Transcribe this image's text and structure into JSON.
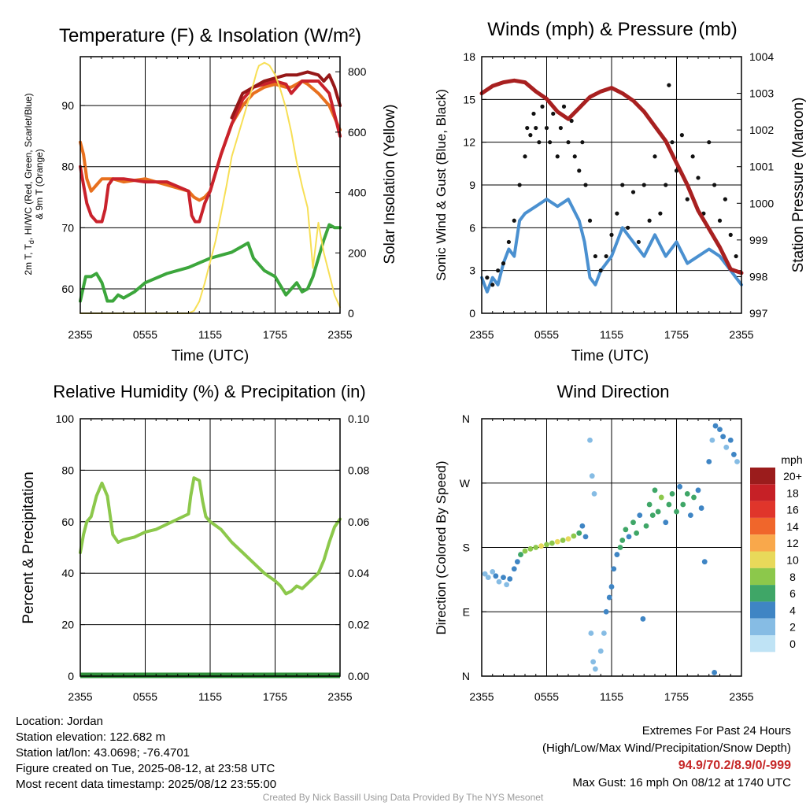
{
  "chart_data": [
    {
      "type": "line",
      "title": "Temperature (F) & Insolation (W/m²)",
      "xlabel": "Time (UTC)",
      "ylabel": "2m T, Td, HI/WC (Red, Green, Scarlet/Blue) & 9m T (Orange)",
      "ylabel_line1": "2m T, T",
      "ylabel_sub": "d",
      "ylabel_line1_rest": ", HI/WC (Red, Green, Scarlet/Blue)",
      "ylabel_line2": "& 9m T (Orange)",
      "y2label": "Solar Insolation (Yellow)",
      "x_ticks": [
        "2355",
        "0555",
        "1155",
        "1755",
        "2355"
      ],
      "ylim": [
        56,
        98
      ],
      "y_ticks": [
        "60",
        "70",
        "80",
        "90"
      ],
      "y2lim": [
        0,
        850
      ],
      "y2_ticks": [
        "0",
        "200",
        "400",
        "600",
        "800"
      ],
      "series": [
        {
          "color": "#e8701e",
          "axis": "left",
          "x": [
            0,
            0.3,
            0.6,
            1,
            1.5,
            2,
            2.5,
            3,
            4,
            6,
            8,
            10,
            10.5,
            11,
            11.5,
            12,
            13,
            14,
            15,
            16,
            17,
            18,
            19,
            19.5,
            20,
            20.5,
            21,
            22,
            23,
            24
          ],
          "y": [
            84,
            82,
            78,
            76,
            77,
            78,
            78,
            78,
            77.5,
            78,
            77,
            76,
            75,
            74.5,
            75,
            76,
            82,
            87,
            90,
            92,
            93,
            93.5,
            93,
            93,
            93.5,
            94,
            93.5,
            92,
            90,
            86
          ]
        },
        {
          "color": "#c9222c",
          "axis": "left",
          "x": [
            0,
            0.3,
            0.6,
            1,
            1.5,
            2,
            2.3,
            2.6,
            3,
            4,
            6,
            8,
            10,
            10.3,
            10.6,
            11,
            11.5,
            12,
            13,
            14,
            15,
            16,
            17,
            18,
            19,
            19.5,
            20,
            20.5,
            21,
            22,
            23,
            24
          ],
          "y": [
            80,
            77,
            74,
            72,
            71,
            71,
            73,
            77,
            78,
            78,
            77.5,
            77.5,
            76,
            72,
            71,
            71,
            74,
            76,
            82,
            87,
            91,
            93,
            93.5,
            94,
            93.5,
            92,
            93,
            94,
            94,
            94,
            92,
            85
          ]
        },
        {
          "color": "#961818",
          "axis": "left",
          "x": [
            14,
            15,
            16,
            17,
            18,
            19,
            20,
            21,
            22,
            22.5,
            23,
            23.5,
            24
          ],
          "y": [
            88,
            92,
            93,
            94,
            94.5,
            95,
            95,
            95.5,
            95,
            94,
            95,
            93,
            90
          ]
        },
        {
          "color": "#3ca63c",
          "axis": "left",
          "x": [
            0,
            0.5,
            1,
            1.5,
            2,
            2.5,
            3,
            3.5,
            4,
            5,
            6,
            8,
            10,
            12,
            14,
            15,
            15.5,
            16,
            17,
            18,
            19,
            19.5,
            20,
            20.5,
            21,
            21.5,
            22,
            22.5,
            23,
            23.5,
            24
          ],
          "y": [
            58,
            62,
            62,
            62.5,
            61,
            58,
            58,
            59,
            58.5,
            59.5,
            61,
            62.5,
            63.5,
            65,
            66,
            67,
            67.5,
            65,
            63,
            62,
            59,
            60,
            61,
            59.5,
            60,
            62,
            65,
            68,
            70.5,
            70,
            70
          ]
        },
        {
          "color": "#f7df55",
          "axis": "right",
          "x": [
            0,
            1,
            2,
            4,
            6,
            8,
            10,
            10.5,
            11,
            11.5,
            12,
            12.5,
            13,
            13.5,
            14,
            15,
            15.5,
            16,
            16.3,
            16.5,
            17,
            17.3,
            17.5,
            18,
            18.5,
            19,
            19.5,
            20,
            20.5,
            21,
            21.5,
            22,
            22.5,
            23,
            23.5,
            24
          ],
          "y": [
            0,
            0,
            0,
            0,
            0,
            0,
            0,
            8,
            40,
            100,
            170,
            240,
            330,
            420,
            520,
            640,
            700,
            760,
            800,
            820,
            830,
            825,
            820,
            790,
            740,
            680,
            600,
            500,
            420,
            350,
            150,
            300,
            200,
            130,
            60,
            20
          ]
        }
      ]
    },
    {
      "type": "line",
      "title": "Winds (mph) & Pressure (mb)",
      "xlabel": "Time (UTC)",
      "ylabel": "Sonic Wind & Gust (Blue, Black)",
      "y2label": "Station Pressure (Maroon)",
      "x_ticks": [
        "2355",
        "0555",
        "1155",
        "1755",
        "2355"
      ],
      "ylim": [
        0,
        18
      ],
      "y_ticks": [
        "0",
        "3",
        "6",
        "9",
        "12",
        "15",
        "18"
      ],
      "y2lim": [
        997,
        1004
      ],
      "y2_ticks": [
        "997",
        "998",
        "999",
        "1000",
        "1001",
        "1002",
        "1003",
        "1004"
      ],
      "wind": {
        "color": "#4a90d0",
        "x": [
          0,
          0.5,
          1,
          1.5,
          2,
          2.5,
          3,
          3.5,
          4,
          5,
          6,
          7,
          8,
          9,
          9.5,
          10,
          10.5,
          11,
          12,
          13,
          14,
          15,
          16,
          17,
          18,
          19,
          20,
          21,
          22,
          23,
          24
        ],
        "y": [
          2.5,
          1.5,
          2.5,
          2,
          3.5,
          4.5,
          4,
          6.5,
          7,
          7.5,
          8,
          7.5,
          8,
          6.5,
          5,
          2.5,
          2,
          3,
          4,
          6,
          5,
          4,
          5.5,
          4,
          5,
          3.5,
          4,
          4.5,
          4,
          3,
          2
        ]
      },
      "pressure": {
        "color": "#a82020",
        "x": [
          0,
          1,
          2,
          3,
          4,
          5,
          6,
          7,
          8,
          9,
          10,
          11,
          12,
          13,
          14,
          15,
          16,
          17,
          18,
          19,
          20,
          21,
          22,
          23,
          24
        ],
        "y": [
          1003,
          1003.2,
          1003.3,
          1003.35,
          1003.3,
          1003.05,
          1002.85,
          1002.5,
          1002.3,
          1002.6,
          1002.9,
          1003.05,
          1003.15,
          1003,
          1002.8,
          1002.5,
          1002.1,
          1001.7,
          1001.1,
          1000.5,
          999.8,
          999.3,
          998.8,
          998.2,
          998.1
        ]
      },
      "gusts": {
        "color": "#111111",
        "x": [
          0.5,
          1,
          1.5,
          2,
          2.5,
          3,
          3.5,
          4,
          4.2,
          4.5,
          4.8,
          5,
          5.3,
          5.6,
          6,
          6.3,
          6.6,
          7,
          7.3,
          7.6,
          8,
          8.3,
          8.6,
          9,
          9.3,
          9.6,
          10,
          10.5,
          11,
          11.5,
          12,
          12.5,
          13,
          13.5,
          14,
          14.5,
          15,
          15.5,
          16,
          16.5,
          17,
          17.3,
          17.6,
          18,
          18.5,
          19,
          19.5,
          20,
          20.5,
          21,
          21.5,
          22,
          22.5,
          23,
          23.5
        ],
        "y": [
          2.5,
          2,
          3,
          3.5,
          5,
          6.5,
          9,
          11,
          13,
          12.5,
          14,
          13,
          12,
          14.5,
          13,
          12,
          14,
          11,
          13,
          14.5,
          12,
          13.5,
          11,
          10,
          12,
          9,
          6.5,
          4,
          3,
          4,
          5.5,
          7,
          9,
          6,
          8.5,
          5,
          9,
          6.5,
          11,
          7,
          9,
          16,
          12,
          10,
          12.5,
          8,
          11,
          9.5,
          7,
          12,
          9,
          6.5,
          8,
          5.5,
          4
        ]
      }
    },
    {
      "type": "line",
      "title": "Relative Humidity (%) & Precipitation (in)",
      "xlabel": "",
      "ylabel": "Percent & Precipitation",
      "x_ticks": [
        "2355",
        "0555",
        "1155",
        "1755",
        "2355"
      ],
      "ylim": [
        0,
        100
      ],
      "y_ticks": [
        "0",
        "20",
        "40",
        "60",
        "80",
        "100"
      ],
      "y2lim": [
        0,
        0.1
      ],
      "y2_ticks": [
        "0.00",
        "0.02",
        "0.04",
        "0.06",
        "0.08",
        "0.10"
      ],
      "series": [
        {
          "color": "#8cc84b",
          "x": [
            0,
            0.3,
            0.6,
            1,
            1.5,
            2,
            2.5,
            3,
            3.5,
            4,
            5,
            6,
            7,
            8,
            9,
            10,
            10.2,
            10.5,
            11,
            11.3,
            11.6,
            12,
            13,
            14,
            15,
            16,
            17,
            18,
            18.5,
            19,
            19.5,
            20,
            20.5,
            21,
            21.5,
            22,
            22.5,
            23,
            23.5,
            24
          ],
          "y": [
            48,
            55,
            60,
            62,
            70,
            75,
            70,
            55,
            52,
            53,
            54,
            56,
            57,
            59,
            61,
            63,
            70,
            77,
            76,
            68,
            62,
            60,
            57,
            52,
            48,
            44,
            40,
            37,
            35,
            32,
            33,
            35,
            34,
            36,
            38,
            40,
            45,
            52,
            58,
            61
          ]
        },
        {
          "color": "#2f8f3a",
          "x": [
            0,
            24
          ],
          "y": [
            0,
            0
          ]
        }
      ]
    },
    {
      "type": "scatter",
      "title": "Wind Direction",
      "ylabel": "Direction (Colored By Speed)",
      "x_ticks": [
        "2355",
        "0555",
        "1155",
        "1755",
        "2355"
      ],
      "y_ticks": [
        "N",
        "E",
        "S",
        "W",
        "N"
      ],
      "ylim": [
        0,
        360
      ],
      "colorbar": {
        "unit": "mph",
        "labels": [
          "20+",
          "18",
          "16",
          "14",
          "12",
          "10",
          "8",
          "6",
          "4",
          "2",
          "0"
        ],
        "colors": [
          "#9b1c1c",
          "#c62026",
          "#e0352b",
          "#f0662b",
          "#f9a84b",
          "#e8d95a",
          "#8cc84b",
          "#3fa667",
          "#3f85c4",
          "#86bce4",
          "#bfe3f5"
        ]
      },
      "points": [
        [
          0.3,
          143,
          2
        ],
        [
          0.6,
          138,
          1
        ],
        [
          1,
          146,
          2
        ],
        [
          1.3,
          140,
          3
        ],
        [
          1.6,
          132,
          2
        ],
        [
          2,
          138,
          3
        ],
        [
          2.3,
          128,
          2
        ],
        [
          2.6,
          136,
          4
        ],
        [
          3,
          150,
          3
        ],
        [
          3.3,
          160,
          4
        ],
        [
          3.6,
          170,
          6
        ],
        [
          4,
          175,
          7
        ],
        [
          4.5,
          178,
          8
        ],
        [
          5,
          180,
          8
        ],
        [
          5.5,
          182,
          9
        ],
        [
          6,
          184,
          8
        ],
        [
          6.5,
          186,
          8
        ],
        [
          7,
          188,
          9
        ],
        [
          7.5,
          190,
          8
        ],
        [
          8,
          192,
          9
        ],
        [
          8.5,
          196,
          8
        ],
        [
          9,
          200,
          5
        ],
        [
          9.3,
          210,
          4
        ],
        [
          9.6,
          195,
          3
        ],
        [
          10,
          330,
          1
        ],
        [
          10.2,
          280,
          2
        ],
        [
          10.4,
          255,
          1
        ],
        [
          10.1,
          60,
          1
        ],
        [
          10.3,
          20,
          2
        ],
        [
          10.5,
          10,
          1
        ],
        [
          11,
          35,
          2
        ],
        [
          11.3,
          60,
          2
        ],
        [
          11.5,
          90,
          3
        ],
        [
          11.8,
          110,
          3
        ],
        [
          12,
          125,
          4
        ],
        [
          12.2,
          150,
          3
        ],
        [
          12.5,
          170,
          4
        ],
        [
          12.8,
          180,
          5
        ],
        [
          13,
          190,
          6
        ],
        [
          13.3,
          205,
          5
        ],
        [
          13.6,
          195,
          4
        ],
        [
          14,
          215,
          6
        ],
        [
          14.3,
          200,
          5
        ],
        [
          14.6,
          225,
          4
        ],
        [
          14.9,
          80,
          4
        ],
        [
          15.2,
          210,
          6
        ],
        [
          15.5,
          240,
          5
        ],
        [
          15.8,
          225,
          6
        ],
        [
          16,
          260,
          5
        ],
        [
          16.3,
          230,
          6
        ],
        [
          16.6,
          250,
          7
        ],
        [
          17,
          215,
          4
        ],
        [
          17.3,
          240,
          6
        ],
        [
          17.6,
          255,
          5
        ],
        [
          18,
          230,
          6
        ],
        [
          18.3,
          265,
          4
        ],
        [
          18.6,
          240,
          5
        ],
        [
          19,
          255,
          6
        ],
        [
          19.3,
          225,
          4
        ],
        [
          19.6,
          250,
          5
        ],
        [
          20,
          260,
          3
        ],
        [
          20.3,
          235,
          4
        ],
        [
          20.6,
          160,
          3
        ],
        [
          21,
          300,
          3
        ],
        [
          21.3,
          330,
          2
        ],
        [
          21.6,
          350,
          3
        ],
        [
          22,
          345,
          4
        ],
        [
          22.3,
          335,
          3
        ],
        [
          22.6,
          320,
          2
        ],
        [
          23,
          330,
          4
        ],
        [
          23.3,
          310,
          3
        ],
        [
          23.6,
          300,
          2
        ],
        [
          21.5,
          5,
          4
        ]
      ]
    }
  ],
  "footer": {
    "location": "Location: Jordan",
    "elevation": "Station elevation: 122.682 m",
    "latlon": "Station lat/lon: 43.0698; -76.4701",
    "created": "Figure created on Tue, 2025-08-12, at 23:58 UTC",
    "recent": "Most recent data timestamp: 2025/08/12 23:55:00",
    "extremes_title": "Extremes For Past 24 Hours",
    "extremes_desc": "(High/Low/Max Wind/Precipitation/Snow Depth)",
    "extremes_values": "94.9/70.2/8.9/0/-999",
    "max_gust": "Max Gust: 16 mph On 08/12 at 1740 UTC",
    "credit": "Created By Nick Bassill Using Data Provided By The NYS Mesonet"
  }
}
